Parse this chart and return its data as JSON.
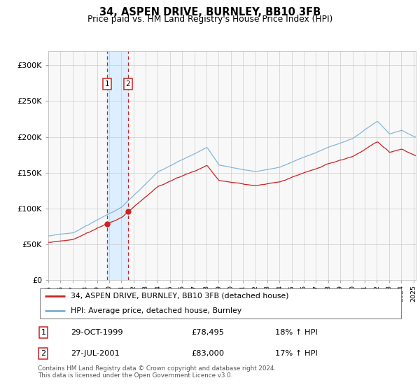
{
  "title": "34, ASPEN DRIVE, BURNLEY, BB10 3FB",
  "subtitle": "Price paid vs. HM Land Registry's House Price Index (HPI)",
  "legend_line1": "34, ASPEN DRIVE, BURNLEY, BB10 3FB (detached house)",
  "legend_line2": "HPI: Average price, detached house, Burnley",
  "footnote": "Contains HM Land Registry data © Crown copyright and database right 2024.\nThis data is licensed under the Open Government Licence v3.0.",
  "purchase1_date": "29-OCT-1999",
  "purchase1_price": 78495,
  "purchase1_label": "£78,495",
  "purchase1_hpi": "18% ↑ HPI",
  "purchase2_date": "27-JUL-2001",
  "purchase2_price": 83000,
  "purchase2_label": "£83,000",
  "purchase2_hpi": "17% ↑ HPI",
  "purchase1_x": 1999.83,
  "purchase2_x": 2001.56,
  "hpi_color": "#7bafd4",
  "price_color": "#cc2222",
  "shade_color": "#ddeeff",
  "vline_color": "#cc2222",
  "ylim": [
    0,
    320000
  ],
  "xlim_start": 1995.0,
  "xlim_end": 2025.2,
  "bg_color": "#f8f8f8"
}
